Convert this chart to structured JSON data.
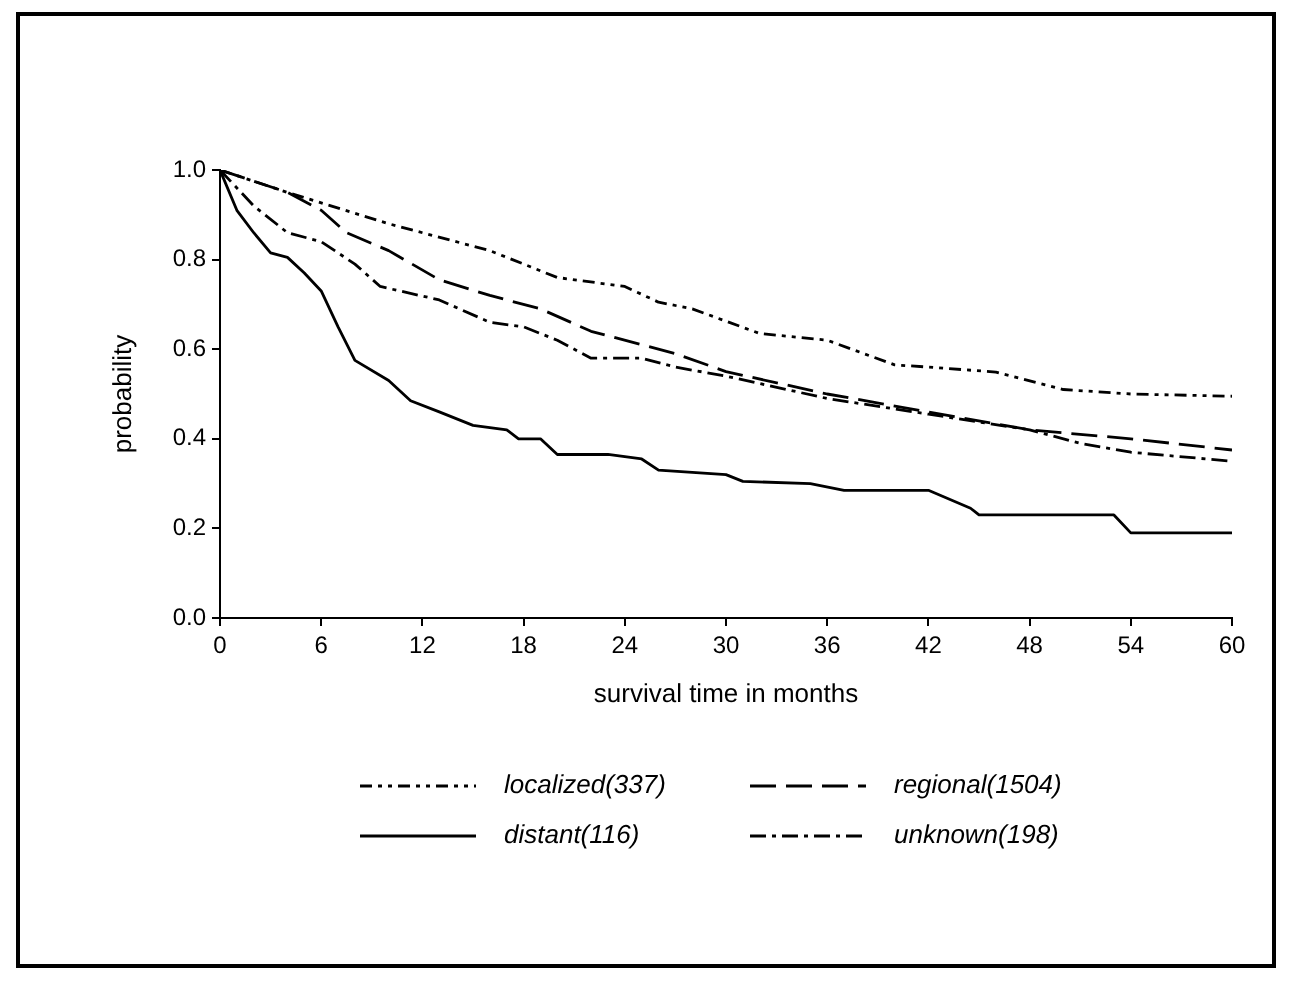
{
  "chart_data": {
    "type": "line",
    "xlabel": "survival time in months",
    "ylabel": "probability",
    "xlim": [
      0,
      60
    ],
    "xticks": [
      0,
      6,
      12,
      18,
      24,
      30,
      36,
      42,
      48,
      54,
      60
    ],
    "ylim": [
      0,
      1
    ],
    "yticks": [
      {
        "value": 0,
        "label": "0.0"
      },
      0.2,
      0.4,
      0.6,
      0.8,
      {
        "value": 1,
        "label": "1.0"
      }
    ],
    "grid": false,
    "legend": "bottom",
    "marker": "none",
    "series": [
      {
        "name": "localized(337)",
        "color": "#000000",
        "line_style": "dotted",
        "x": [
          0,
          4,
          10,
          16,
          20,
          24,
          26,
          28,
          32,
          36,
          40,
          42,
          46,
          50,
          54,
          60
        ],
        "values": [
          1.0,
          0.95,
          0.88,
          0.82,
          0.76,
          0.74,
          0.705,
          0.69,
          0.635,
          0.62,
          0.565,
          0.56,
          0.549,
          0.51,
          0.5,
          0.495
        ]
      },
      {
        "name": "regional(1504)",
        "color": "#000000",
        "line_style": "dashed",
        "x": [
          0,
          4,
          6,
          7.5,
          10,
          13,
          16,
          19,
          22,
          25,
          27,
          30,
          36,
          42,
          48,
          54,
          60
        ],
        "values": [
          1.0,
          0.95,
          0.91,
          0.86,
          0.82,
          0.755,
          0.72,
          0.69,
          0.64,
          0.61,
          0.59,
          0.55,
          0.5,
          0.46,
          0.42,
          0.4,
          0.375
        ]
      },
      {
        "name": "distant(116)",
        "color": "#000000",
        "line_style": "solid",
        "x": [
          0,
          1,
          2,
          3,
          4,
          5,
          6,
          7,
          8,
          10,
          11.3,
          13,
          15,
          17,
          17.7,
          19,
          20,
          23,
          25,
          26,
          28,
          30,
          31,
          35,
          37,
          42,
          44.5,
          45,
          53,
          54,
          60
        ],
        "values": [
          1.0,
          0.91,
          0.86,
          0.815,
          0.805,
          0.77,
          0.73,
          0.65,
          0.575,
          0.53,
          0.485,
          0.46,
          0.43,
          0.42,
          0.4,
          0.4,
          0.365,
          0.365,
          0.355,
          0.33,
          0.325,
          0.32,
          0.305,
          0.3,
          0.285,
          0.285,
          0.245,
          0.23,
          0.23,
          0.19,
          0.19
        ]
      },
      {
        "name": "unknown(198)",
        "color": "#000000",
        "line_style": "dashed",
        "x": [
          0,
          2,
          4,
          6,
          8,
          9.5,
          13,
          16,
          18,
          20,
          22,
          25,
          27,
          30,
          36,
          42,
          48,
          51,
          54,
          60
        ],
        "values": [
          1.0,
          0.92,
          0.86,
          0.84,
          0.79,
          0.74,
          0.71,
          0.66,
          0.65,
          0.62,
          0.58,
          0.58,
          0.56,
          0.54,
          0.49,
          0.455,
          0.42,
          0.39,
          0.37,
          0.35
        ]
      }
    ]
  }
}
